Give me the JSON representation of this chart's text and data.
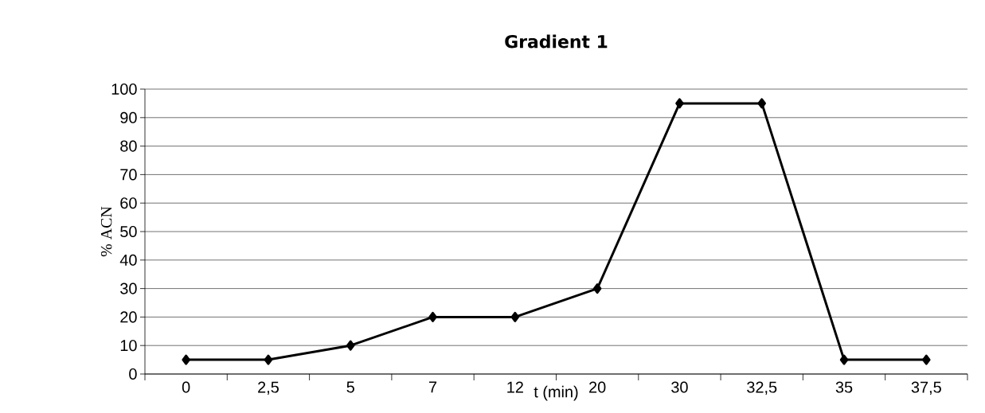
{
  "chart_data": {
    "type": "line",
    "title": "Gradient 1",
    "xlabel": "t (min)",
    "ylabel": "% ACN",
    "categories": [
      "0",
      "2,5",
      "5",
      "7",
      "12",
      "20",
      "30",
      "32,5",
      "35",
      "37,5"
    ],
    "series": [
      {
        "color": "#000000",
        "values": [
          5,
          5,
          10,
          20,
          20,
          30,
          95,
          95,
          5,
          5
        ]
      }
    ],
    "ylim": [
      0,
      100
    ],
    "yticks": [
      0,
      10,
      20,
      30,
      40,
      50,
      60,
      70,
      80,
      90,
      100
    ],
    "grid": "y",
    "marker": "diamond",
    "line_style": "solid"
  }
}
